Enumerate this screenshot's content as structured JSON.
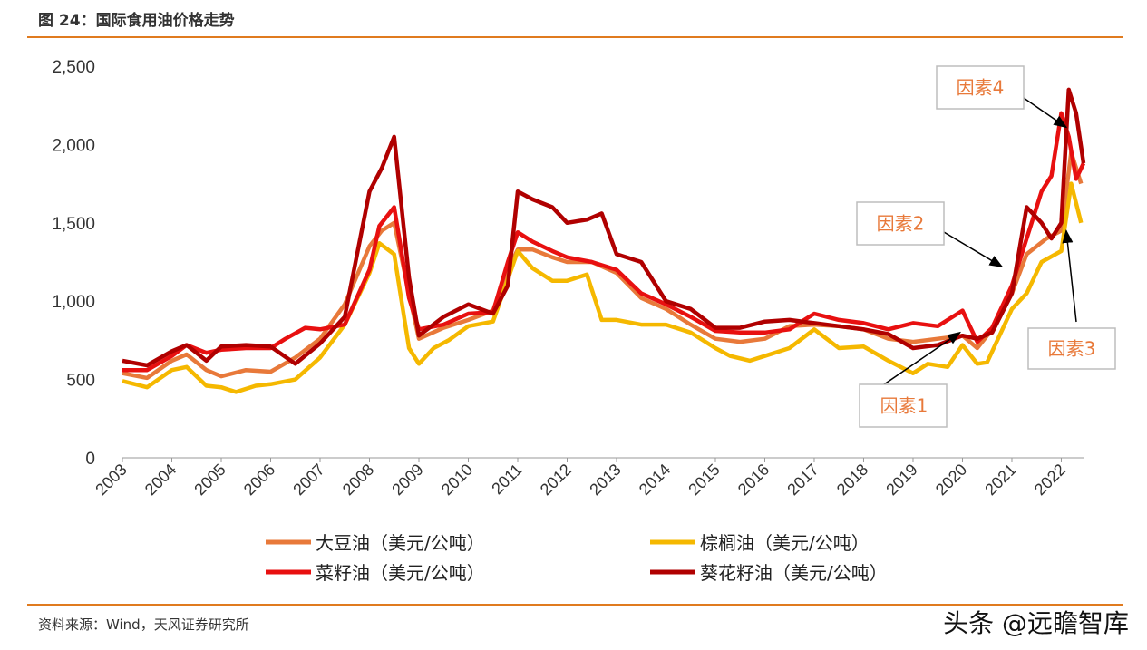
{
  "header": {
    "title": "图 24：国际食用油价格走势"
  },
  "footer": {
    "source": "资料来源：Wind，天风证券研究所",
    "watermark": "头条 @远瞻智库"
  },
  "chart_data": {
    "type": "line",
    "title": "",
    "xlabel": "",
    "ylabel": "",
    "ylim": [
      0,
      2500
    ],
    "yticks": [
      0,
      500,
      1000,
      1500,
      2000,
      2500
    ],
    "ytick_labels": [
      "0",
      "500",
      "1,000",
      "1,500",
      "2,000",
      "2,500"
    ],
    "xlim": [
      2003,
      2022.45
    ],
    "xticks": [
      2003,
      2004,
      2005,
      2006,
      2007,
      2008,
      2009,
      2010,
      2011,
      2012,
      2013,
      2014,
      2015,
      2016,
      2017,
      2018,
      2019,
      2020,
      2021,
      2022
    ],
    "xtick_labels": [
      "2003",
      "2004",
      "2005",
      "2006",
      "2007",
      "2008",
      "2009",
      "2010",
      "2011",
      "2012",
      "2013",
      "2014",
      "2015",
      "2016",
      "2017",
      "2018",
      "2019",
      "2020",
      "2021",
      "2022"
    ],
    "legend_position": "bottom",
    "series": [
      {
        "name": "大豆油（美元/公吨）",
        "color": "#e8793a",
        "x": [
          2003,
          2003.5,
          2004,
          2004.3,
          2004.7,
          2005,
          2005.5,
          2006,
          2006.5,
          2007,
          2007.5,
          2008,
          2008.25,
          2008.5,
          2008.8,
          2009,
          2009.5,
          2010,
          2010.5,
          2010.8,
          2011,
          2011.3,
          2011.7,
          2012,
          2012.5,
          2013,
          2013.5,
          2014,
          2014.5,
          2015,
          2015.5,
          2016,
          2016.5,
          2017,
          2017.5,
          2018,
          2018.5,
          2019,
          2019.5,
          2020,
          2020.3,
          2020.6,
          2021,
          2021.3,
          2021.7,
          2022,
          2022.2,
          2022.4
        ],
        "y": [
          540,
          510,
          620,
          660,
          560,
          520,
          560,
          550,
          640,
          760,
          980,
          1350,
          1450,
          1500,
          1050,
          760,
          830,
          880,
          940,
          1200,
          1330,
          1330,
          1280,
          1250,
          1250,
          1180,
          1020,
          950,
          850,
          760,
          740,
          760,
          840,
          850,
          840,
          820,
          760,
          740,
          760,
          780,
          700,
          820,
          1050,
          1300,
          1400,
          1450,
          1950,
          1750
        ]
      },
      {
        "name": "棕榈油（美元/公吨）",
        "color": "#f5b800",
        "x": [
          2003,
          2003.5,
          2004,
          2004.3,
          2004.7,
          2005,
          2005.3,
          2005.7,
          2006,
          2006.5,
          2007,
          2007.5,
          2008,
          2008.2,
          2008.5,
          2008.8,
          2009,
          2009.3,
          2009.6,
          2010,
          2010.5,
          2011,
          2011.3,
          2011.7,
          2012,
          2012.4,
          2012.7,
          2013,
          2013.5,
          2014,
          2014.5,
          2015,
          2015.3,
          2015.7,
          2016,
          2016.5,
          2017,
          2017.5,
          2018,
          2018.5,
          2019,
          2019.3,
          2019.7,
          2020,
          2020.3,
          2020.5,
          2021,
          2021.3,
          2021.6,
          2022,
          2022.2,
          2022.4
        ],
        "y": [
          490,
          450,
          560,
          580,
          460,
          450,
          420,
          460,
          470,
          500,
          640,
          850,
          1180,
          1370,
          1300,
          700,
          600,
          700,
          750,
          840,
          870,
          1320,
          1210,
          1130,
          1130,
          1170,
          880,
          880,
          850,
          850,
          800,
          700,
          650,
          620,
          650,
          700,
          820,
          700,
          710,
          620,
          540,
          600,
          580,
          720,
          600,
          610,
          950,
          1050,
          1250,
          1320,
          1750,
          1500
        ]
      },
      {
        "name": "菜籽油（美元/公吨）",
        "color": "#e81010",
        "x": [
          2003,
          2003.5,
          2004,
          2004.3,
          2004.7,
          2005,
          2005.5,
          2006,
          2006.3,
          2006.7,
          2007,
          2007.5,
          2008,
          2008.2,
          2008.5,
          2008.8,
          2009,
          2009.5,
          2010,
          2010.5,
          2010.8,
          2011,
          2011.3,
          2011.7,
          2012,
          2012.5,
          2013,
          2013.5,
          2014,
          2014.5,
          2015,
          2015.5,
          2016,
          2016.5,
          2017,
          2017.5,
          2018,
          2018.5,
          2019,
          2019.5,
          2020,
          2020.3,
          2020.6,
          2021,
          2021.3,
          2021.6,
          2021.8,
          2022,
          2022.15,
          2022.3,
          2022.45
        ],
        "y": [
          560,
          560,
          650,
          720,
          670,
          690,
          700,
          700,
          760,
          830,
          820,
          850,
          1200,
          1480,
          1600,
          1020,
          820,
          850,
          920,
          930,
          1250,
          1440,
          1380,
          1320,
          1280,
          1250,
          1200,
          1050,
          980,
          900,
          810,
          800,
          800,
          820,
          920,
          880,
          860,
          820,
          860,
          840,
          940,
          740,
          830,
          1100,
          1400,
          1700,
          1800,
          2200,
          2050,
          1780,
          1880
        ]
      },
      {
        "name": "葵花籽油（美元/公吨）",
        "color": "#b00000",
        "x": [
          2003,
          2003.5,
          2004,
          2004.3,
          2004.7,
          2005,
          2005.5,
          2006,
          2006.5,
          2007,
          2007.5,
          2008,
          2008.25,
          2008.5,
          2008.8,
          2009,
          2009.5,
          2010,
          2010.5,
          2010.8,
          2011,
          2011.3,
          2011.7,
          2012,
          2012.4,
          2012.7,
          2013,
          2013.5,
          2014,
          2014.5,
          2015,
          2015.5,
          2016,
          2016.5,
          2017,
          2017.5,
          2018,
          2018.5,
          2019,
          2019.5,
          2020,
          2020.3,
          2020.6,
          2021,
          2021.3,
          2021.6,
          2021.8,
          2022,
          2022.15,
          2022.3,
          2022.45
        ],
        "y": [
          620,
          590,
          680,
          720,
          620,
          710,
          720,
          710,
          600,
          730,
          900,
          1700,
          1850,
          2050,
          1150,
          780,
          900,
          980,
          920,
          1100,
          1700,
          1650,
          1600,
          1500,
          1520,
          1560,
          1300,
          1250,
          1000,
          950,
          830,
          830,
          870,
          880,
          860,
          840,
          820,
          790,
          700,
          720,
          780,
          760,
          800,
          1050,
          1600,
          1500,
          1400,
          1500,
          2350,
          2200,
          1880
        ]
      }
    ],
    "annotations": [
      {
        "text": "因素1",
        "x": 2019.95,
        "y": 800
      },
      {
        "text": "因素2",
        "x": 2020.8,
        "y": 1220
      },
      {
        "text": "因素3",
        "x": 2022.1,
        "y": 1450
      },
      {
        "text": "因素4",
        "x": 2022.1,
        "y": 2110
      }
    ]
  }
}
